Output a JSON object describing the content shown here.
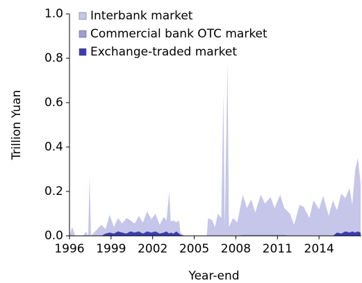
{
  "chart_data": {
    "type": "stacked_area",
    "ylabel": "Trillion Yuan",
    "xlabel": "Year-end",
    "x": [
      1996.0,
      1996.2,
      1996.4,
      1997.0,
      1997.2,
      1997.35,
      1997.45,
      1997.55,
      1998.0,
      1998.3,
      1998.6,
      1998.9,
      1999.2,
      1999.5,
      1999.8,
      2000.1,
      2000.4,
      2000.7,
      2001.0,
      2001.3,
      2001.6,
      2001.9,
      2002.2,
      2002.5,
      2002.8,
      2003.0,
      2003.2,
      2003.3,
      2003.5,
      2003.7,
      2003.9,
      2004.0,
      2004.3,
      2005.9,
      2006.0,
      2006.3,
      2006.5,
      2006.7,
      2006.95,
      2007.1,
      2007.2,
      2007.4,
      2007.5,
      2007.8,
      2008.1,
      2008.5,
      2008.8,
      2009.1,
      2009.4,
      2009.8,
      2010.1,
      2010.5,
      2010.8,
      2011.2,
      2011.5,
      2011.9,
      2012.2,
      2012.6,
      2012.9,
      2013.3,
      2013.6,
      2014.0,
      2014.3,
      2014.7,
      2015.0,
      2015.3,
      2015.6,
      2015.9,
      2016.2,
      2016.4,
      2016.6,
      2016.8,
      2017.0
    ],
    "series": [
      {
        "name": "Interbank market",
        "color": "#c6c6ea",
        "values": [
          0,
          0.04,
          0,
          0,
          0.02,
          0,
          0.27,
          0,
          0.03,
          0.05,
          0.02,
          0.08,
          0.03,
          0.06,
          0.04,
          0.07,
          0.05,
          0.04,
          0.07,
          0.05,
          0.09,
          0.06,
          0.08,
          0.04,
          0.07,
          0.05,
          0.19,
          0.05,
          0.06,
          0.04,
          0.06,
          0.01,
          0,
          0,
          0.08,
          0.07,
          0.04,
          0.1,
          0.08,
          0.64,
          0.04,
          0.78,
          0.04,
          0.08,
          0.06,
          0.18,
          0.12,
          0.16,
          0.1,
          0.18,
          0.14,
          0.17,
          0.12,
          0.18,
          0.12,
          0.1,
          0.05,
          0.14,
          0.13,
          0.08,
          0.16,
          0.12,
          0.18,
          0.09,
          0.16,
          0.1,
          0.18,
          0.15,
          0.2,
          0.12,
          0.28,
          0.33,
          0.22
        ]
      },
      {
        "name": "Commercial bank OTC market",
        "color": "#9c9cd8",
        "values": [
          0,
          0,
          0,
          0,
          0,
          0,
          0,
          0,
          0,
          0,
          0,
          0,
          0,
          0,
          0,
          0,
          0,
          0,
          0,
          0,
          0,
          0,
          0,
          0,
          0,
          0,
          0,
          0,
          0,
          0,
          0,
          0,
          0,
          0,
          0,
          0,
          0,
          0,
          0,
          0,
          0,
          0,
          0,
          0,
          0,
          0.005,
          0.005,
          0.005,
          0.005,
          0.005,
          0.005,
          0.005,
          0.005,
          0.005,
          0.005,
          0,
          0,
          0,
          0,
          0,
          0,
          0,
          0,
          0,
          0,
          0,
          0,
          0,
          0,
          0,
          0,
          0,
          0
        ]
      },
      {
        "name": "Exchange-traded market",
        "color": "#3c3cb0",
        "values": [
          0,
          0,
          0,
          0,
          0,
          0,
          0,
          0,
          0,
          0,
          0.01,
          0.015,
          0.01,
          0.02,
          0.015,
          0.01,
          0.02,
          0.015,
          0.02,
          0.01,
          0.02,
          0.015,
          0.02,
          0.01,
          0.015,
          0.02,
          0.01,
          0.015,
          0.01,
          0.02,
          0.01,
          0.005,
          0,
          0,
          0,
          0,
          0,
          0,
          0,
          0,
          0,
          0,
          0,
          0,
          0,
          0,
          0,
          0,
          0,
          0,
          0,
          0,
          0,
          0,
          0,
          0,
          0,
          0,
          0,
          0,
          0,
          0,
          0,
          0,
          0,
          0.015,
          0.01,
          0.02,
          0.015,
          0.02,
          0.015,
          0.02,
          0.015
        ]
      }
    ],
    "xlim": [
      1996,
      2017.05
    ],
    "xticks": [
      1996,
      1999,
      2002,
      2005,
      2008,
      2011,
      2014
    ],
    "ylim": [
      0,
      1
    ],
    "yticks": [
      {
        "value": 0,
        "label": "0.0"
      },
      0.2,
      0.4,
      0.6,
      0.8,
      {
        "value": 1,
        "label": "1.0"
      }
    ],
    "grid": false,
    "legend": "upper left"
  }
}
